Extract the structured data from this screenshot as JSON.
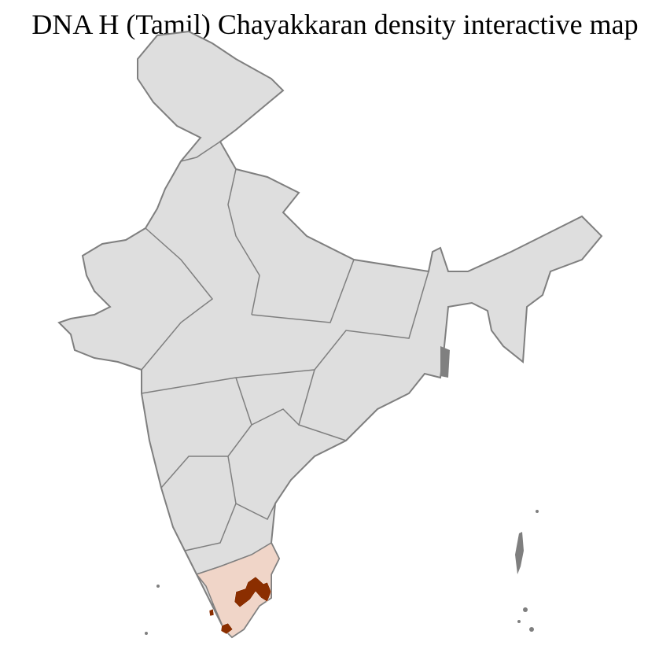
{
  "title": "DNA H (Tamil) Chayakkaran density interactive map",
  "map": {
    "colors": {
      "no_data": "#dedede",
      "district_border": "#ffffff",
      "state_border": "#7f7f7f",
      "low_density": "#f0d5c8",
      "high_density": "#8b2e00"
    },
    "highlighted_regions": [
      {
        "region": "Tamil Nadu",
        "level": "low"
      },
      {
        "region": "Central Tamil Nadu districts",
        "level": "high"
      },
      {
        "region": "Southern Kerala district",
        "level": "high"
      }
    ]
  }
}
